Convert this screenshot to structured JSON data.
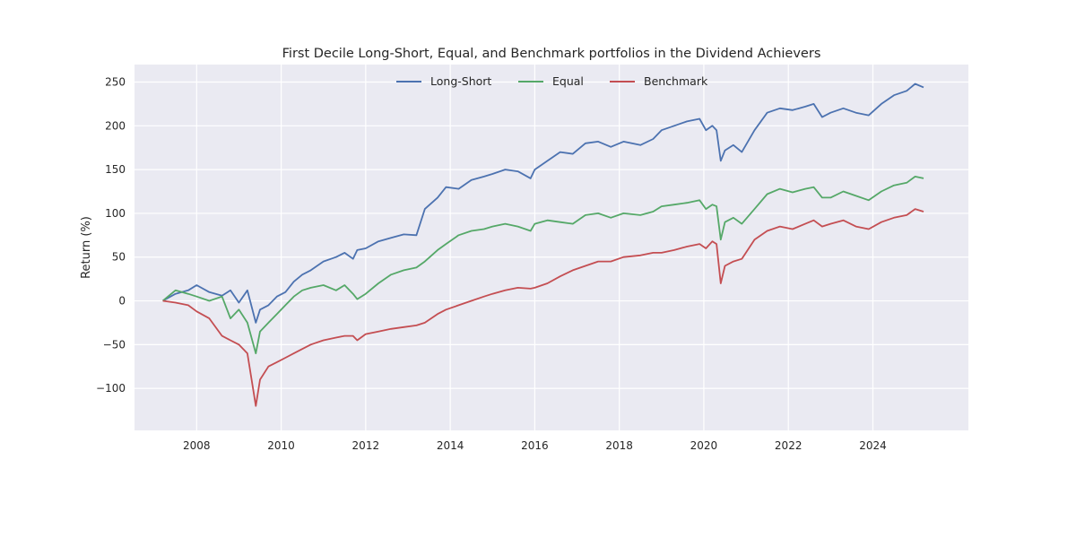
{
  "chart_data": {
    "type": "line",
    "title": "First Decile Long-Short, Equal, and Benchmark portfolios in the Dividend Achievers",
    "xlabel": "",
    "ylabel": "Return (%)",
    "xlim": [
      2006.53,
      2026.26
    ],
    "ylim": [
      -148,
      270
    ],
    "x_ticks": [
      2008,
      2010,
      2012,
      2014,
      2016,
      2018,
      2020,
      2022,
      2024
    ],
    "x_tick_labels": [
      "2008",
      "2010",
      "2012",
      "2014",
      "2016",
      "2018",
      "2020",
      "2022",
      "2024"
    ],
    "y_ticks": [
      -100,
      -50,
      0,
      50,
      100,
      150,
      200,
      250
    ],
    "y_tick_labels": [
      "−100",
      "−50",
      "0",
      "50",
      "100",
      "150",
      "200",
      "250"
    ],
    "grid": true,
    "legend_position": "top-center",
    "background_color": "#eaeaf2",
    "grid_color": "#ffffff",
    "series": [
      {
        "name": "Long-Short",
        "color": "#4c72b0",
        "x": [
          2007.2,
          2007.5,
          2007.8,
          2008.0,
          2008.3,
          2008.6,
          2008.8,
          2009.0,
          2009.2,
          2009.4,
          2009.5,
          2009.7,
          2009.9,
          2010.1,
          2010.3,
          2010.5,
          2010.7,
          2011.0,
          2011.3,
          2011.5,
          2011.7,
          2011.8,
          2012.0,
          2012.3,
          2012.6,
          2012.9,
          2013.2,
          2013.4,
          2013.7,
          2013.9,
          2014.2,
          2014.5,
          2014.8,
          2015.0,
          2015.3,
          2015.6,
          2015.9,
          2016.0,
          2016.3,
          2016.6,
          2016.9,
          2017.2,
          2017.5,
          2017.8,
          2018.1,
          2018.5,
          2018.8,
          2019.0,
          2019.3,
          2019.6,
          2019.9,
          2020.05,
          2020.2,
          2020.3,
          2020.4,
          2020.5,
          2020.7,
          2020.9,
          2021.2,
          2021.5,
          2021.8,
          2022.1,
          2022.4,
          2022.6,
          2022.8,
          2023.0,
          2023.3,
          2023.6,
          2023.9,
          2024.2,
          2024.5,
          2024.8,
          2025.0,
          2025.2
        ],
        "values": [
          0,
          8,
          12,
          18,
          10,
          6,
          12,
          -2,
          12,
          -25,
          -10,
          -5,
          5,
          10,
          22,
          30,
          35,
          45,
          50,
          55,
          48,
          58,
          60,
          68,
          72,
          76,
          75,
          105,
          118,
          130,
          128,
          138,
          142,
          145,
          150,
          148,
          140,
          150,
          160,
          170,
          168,
          180,
          182,
          176,
          182,
          178,
          185,
          195,
          200,
          205,
          208,
          195,
          200,
          195,
          160,
          172,
          178,
          170,
          195,
          215,
          220,
          218,
          222,
          225,
          210,
          215,
          220,
          215,
          212,
          225,
          235,
          240,
          248,
          244
        ]
      },
      {
        "name": "Equal",
        "color": "#55a868",
        "x": [
          2007.2,
          2007.5,
          2007.8,
          2008.0,
          2008.3,
          2008.6,
          2008.8,
          2009.0,
          2009.2,
          2009.4,
          2009.5,
          2009.7,
          2009.9,
          2010.1,
          2010.3,
          2010.5,
          2010.7,
          2011.0,
          2011.3,
          2011.5,
          2011.7,
          2011.8,
          2012.0,
          2012.3,
          2012.6,
          2012.9,
          2013.2,
          2013.4,
          2013.7,
          2013.9,
          2014.2,
          2014.5,
          2014.8,
          2015.0,
          2015.3,
          2015.6,
          2015.9,
          2016.0,
          2016.3,
          2016.6,
          2016.9,
          2017.2,
          2017.5,
          2017.8,
          2018.1,
          2018.5,
          2018.8,
          2019.0,
          2019.3,
          2019.6,
          2019.9,
          2020.05,
          2020.2,
          2020.3,
          2020.4,
          2020.5,
          2020.7,
          2020.9,
          2021.2,
          2021.5,
          2021.8,
          2022.1,
          2022.4,
          2022.6,
          2022.8,
          2023.0,
          2023.3,
          2023.6,
          2023.9,
          2024.2,
          2024.5,
          2024.8,
          2025.0,
          2025.2
        ],
        "values": [
          0,
          12,
          8,
          5,
          0,
          5,
          -20,
          -10,
          -25,
          -60,
          -35,
          -25,
          -15,
          -5,
          5,
          12,
          15,
          18,
          12,
          18,
          8,
          2,
          8,
          20,
          30,
          35,
          38,
          45,
          58,
          65,
          75,
          80,
          82,
          85,
          88,
          85,
          80,
          88,
          92,
          90,
          88,
          98,
          100,
          95,
          100,
          98,
          102,
          108,
          110,
          112,
          115,
          105,
          110,
          108,
          70,
          90,
          95,
          88,
          105,
          122,
          128,
          124,
          128,
          130,
          118,
          118,
          125,
          120,
          115,
          125,
          132,
          135,
          142,
          140
        ]
      },
      {
        "name": "Benchmark",
        "color": "#c44e52",
        "x": [
          2007.2,
          2007.5,
          2007.8,
          2008.0,
          2008.3,
          2008.6,
          2008.8,
          2009.0,
          2009.2,
          2009.4,
          2009.5,
          2009.7,
          2009.9,
          2010.1,
          2010.3,
          2010.5,
          2010.7,
          2011.0,
          2011.3,
          2011.5,
          2011.7,
          2011.8,
          2012.0,
          2012.3,
          2012.6,
          2012.9,
          2013.2,
          2013.4,
          2013.7,
          2013.9,
          2014.2,
          2014.5,
          2014.8,
          2015.0,
          2015.3,
          2015.6,
          2015.9,
          2016.0,
          2016.3,
          2016.6,
          2016.9,
          2017.2,
          2017.5,
          2017.8,
          2018.1,
          2018.5,
          2018.8,
          2019.0,
          2019.3,
          2019.6,
          2019.9,
          2020.05,
          2020.2,
          2020.3,
          2020.4,
          2020.5,
          2020.7,
          2020.9,
          2021.2,
          2021.5,
          2021.8,
          2022.1,
          2022.4,
          2022.6,
          2022.8,
          2023.0,
          2023.3,
          2023.6,
          2023.9,
          2024.2,
          2024.5,
          2024.8,
          2025.0,
          2025.2
        ],
        "values": [
          0,
          -2,
          -5,
          -12,
          -20,
          -40,
          -45,
          -50,
          -60,
          -120,
          -90,
          -75,
          -70,
          -65,
          -60,
          -55,
          -50,
          -45,
          -42,
          -40,
          -40,
          -45,
          -38,
          -35,
          -32,
          -30,
          -28,
          -25,
          -15,
          -10,
          -5,
          0,
          5,
          8,
          12,
          15,
          14,
          15,
          20,
          28,
          35,
          40,
          45,
          45,
          50,
          52,
          55,
          55,
          58,
          62,
          65,
          60,
          68,
          65,
          20,
          40,
          45,
          48,
          70,
          80,
          85,
          82,
          88,
          92,
          85,
          88,
          92,
          85,
          82,
          90,
          95,
          98,
          105,
          102
        ]
      }
    ]
  }
}
